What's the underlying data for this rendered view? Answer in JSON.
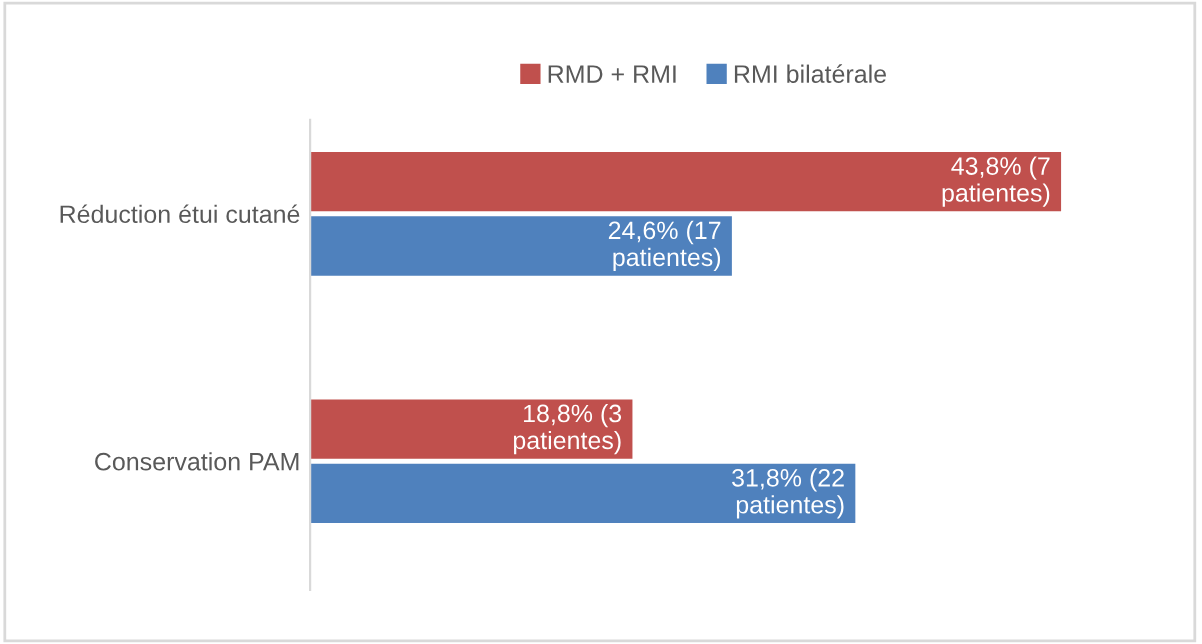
{
  "chart_data": {
    "type": "bar",
    "orientation": "horizontal",
    "categories": [
      "Réduction étui cutané",
      "Conservation PAM"
    ],
    "series": [
      {
        "name": "RMD + RMI",
        "color": "#c0504d",
        "values": [
          43.8,
          18.8
        ],
        "value_labels": [
          "43,8% (7 patientes)",
          "18,8% (3 patientes)"
        ]
      },
      {
        "name": "RMI bilatérale",
        "color": "#4f81bd",
        "values": [
          24.6,
          31.8
        ],
        "value_labels": [
          "24,6% (17 patientes)",
          "31,8% (22 patientes)"
        ]
      }
    ],
    "grid": false,
    "legend": "top",
    "tick_labels": "y"
  }
}
